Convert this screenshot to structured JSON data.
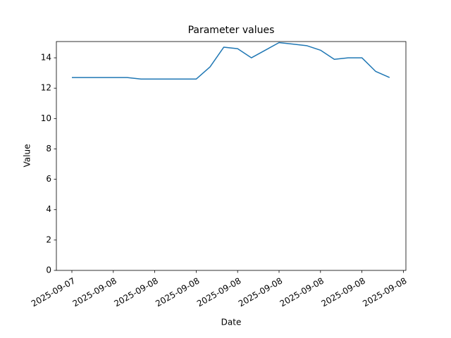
{
  "chart_data": {
    "type": "line",
    "title": "Parameter values",
    "x_label": "Date",
    "y_label": "Value",
    "categories": [
      "2025-09-07",
      null,
      null,
      "2025-09-08",
      null,
      null,
      "2025-09-08",
      null,
      null,
      "2025-09-08",
      null,
      null,
      "2025-09-08",
      null,
      null,
      "2025-09-08",
      null,
      null,
      "2025-09-08",
      null,
      null,
      "2025-09-08",
      null,
      null,
      "2025-09-08"
    ],
    "series": [
      {
        "name": "Value",
        "color": "#1f77b4",
        "values": [
          12.7,
          12.7,
          12.7,
          12.7,
          12.7,
          12.6,
          12.6,
          12.6,
          12.6,
          12.6,
          13.4,
          14.7,
          14.6,
          14.0,
          14.5,
          15.0,
          14.9,
          14.8,
          14.5,
          13.9,
          14.0,
          14.0,
          13.1,
          12.7,
          null
        ]
      }
    ],
    "ylim": [
      0,
      15.07
    ],
    "yticks": [
      0,
      2,
      4,
      6,
      8,
      10,
      12,
      14
    ],
    "grid": false
  }
}
